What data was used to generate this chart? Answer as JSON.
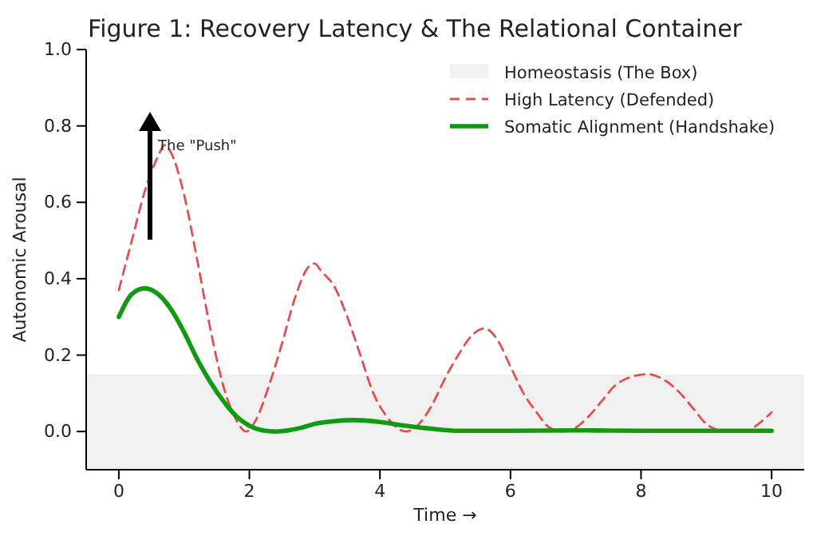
{
  "chart_data": {
    "type": "line",
    "title": "Figure 1: Recovery Latency & The Relational Container",
    "xlabel": "Time →",
    "ylabel": "Autonomic Arousal",
    "xlim": [
      -0.5,
      10.5
    ],
    "ylim": [
      -0.1,
      1.0
    ],
    "xticks": [
      0,
      2,
      4,
      6,
      8,
      10
    ],
    "yticks": [
      {
        "value": 0,
        "label": "0.0"
      },
      {
        "value": 0.2,
        "label": "0.2"
      },
      {
        "value": 0.4,
        "label": "0.4"
      },
      {
        "value": 0.6,
        "label": "0.6"
      },
      {
        "value": 0.8,
        "label": "0.8"
      },
      {
        "value": 1.0,
        "label": "1.0"
      }
    ],
    "bands": [
      {
        "axis": "y",
        "from": -0.1,
        "to": 0.15,
        "label": "Homeostasis (The Box)",
        "color": "#f0f0f0"
      }
    ],
    "series": [
      {
        "name": "High Latency (Defended)",
        "color": "#e05050",
        "line_style": "dashed",
        "x": [
          0,
          0.2,
          0.4,
          0.6,
          0.7,
          0.8,
          1.0,
          1.2,
          1.4,
          1.6,
          1.8,
          1.95,
          2.1,
          2.3,
          2.5,
          2.7,
          2.9,
          3.0,
          3.1,
          3.3,
          3.5,
          3.7,
          3.9,
          4.1,
          4.4,
          4.6,
          4.8,
          5.0,
          5.2,
          5.4,
          5.6,
          5.8,
          6.0,
          6.2,
          6.4,
          6.6,
          6.8,
          7.0,
          7.2,
          7.4,
          7.6,
          7.8,
          8.1,
          8.4,
          8.6,
          8.8,
          9.0,
          9.3,
          9.6,
          9.8,
          10
        ],
        "values": [
          0.37,
          0.5,
          0.63,
          0.72,
          0.75,
          0.73,
          0.62,
          0.45,
          0.27,
          0.12,
          0.03,
          0.0,
          0.03,
          0.12,
          0.23,
          0.35,
          0.43,
          0.44,
          0.42,
          0.38,
          0.3,
          0.2,
          0.1,
          0.04,
          0.0,
          0.02,
          0.07,
          0.14,
          0.2,
          0.25,
          0.27,
          0.24,
          0.17,
          0.1,
          0.05,
          0.01,
          0.0,
          0.01,
          0.04,
          0.08,
          0.12,
          0.14,
          0.15,
          0.13,
          0.1,
          0.06,
          0.02,
          0.0,
          0.0,
          0.02,
          0.05
        ]
      },
      {
        "name": "Somatic Alignment (Handshake)",
        "color": "#119911",
        "line_style": "solid",
        "x": [
          0,
          0.2,
          0.4,
          0.6,
          0.8,
          1.0,
          1.2,
          1.4,
          1.6,
          1.8,
          2.0,
          2.2,
          2.4,
          2.6,
          2.8,
          3.0,
          3.3,
          3.6,
          4.0,
          4.4,
          4.8,
          5.2,
          6,
          7,
          8,
          9,
          10
        ],
        "values": [
          0.3,
          0.36,
          0.375,
          0.36,
          0.32,
          0.26,
          0.19,
          0.13,
          0.08,
          0.04,
          0.015,
          0.003,
          0.0,
          0.003,
          0.01,
          0.02,
          0.027,
          0.03,
          0.025,
          0.015,
          0.007,
          0.002,
          0.002,
          0.003,
          0.002,
          0.002,
          0.002
        ]
      }
    ],
    "annotations": [
      "The \"Push\""
    ],
    "legend": "top right",
    "grid": false,
    "marker": "none"
  }
}
